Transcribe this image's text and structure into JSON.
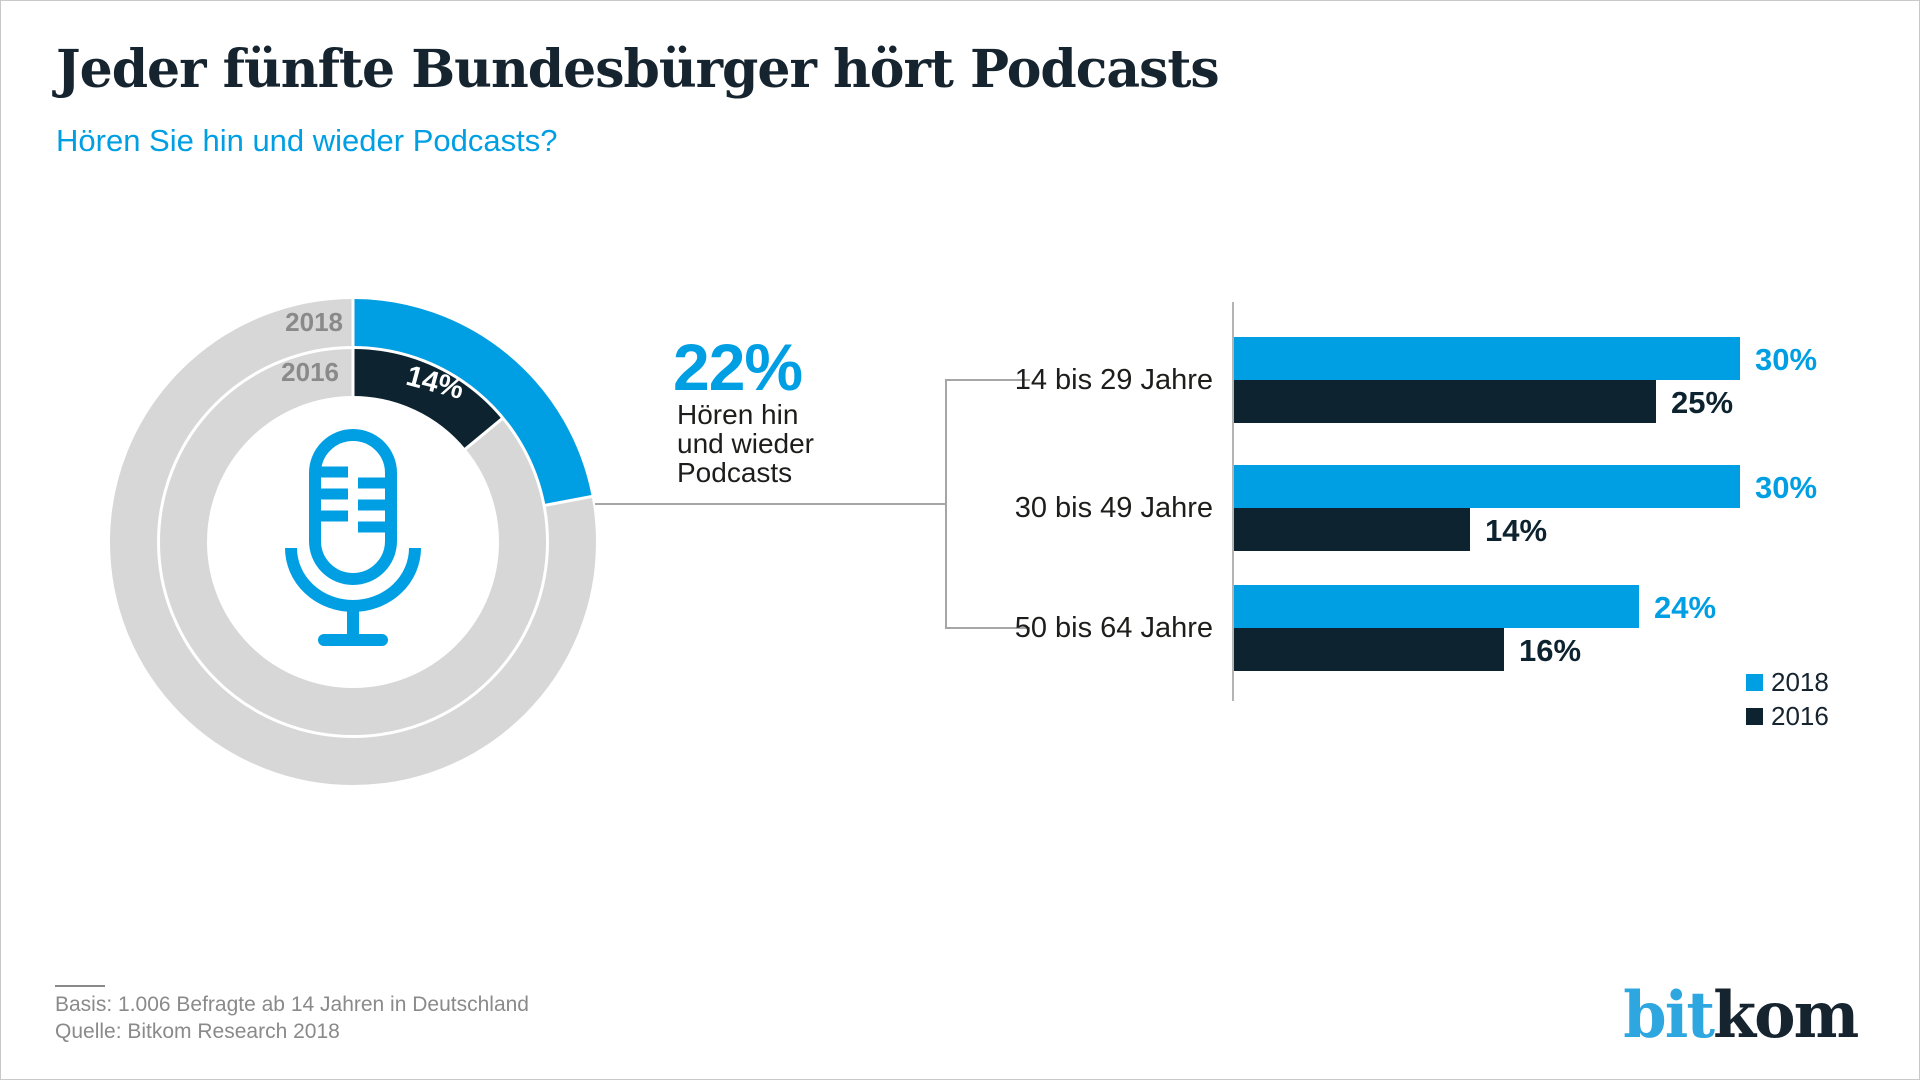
{
  "header": {
    "title": "Jeder fünfte Bundesbürger hört Podcasts",
    "subtitle": "Hören Sie hin und wieder Podcasts?"
  },
  "colors": {
    "blue": "#009FE3",
    "dark": "#0D2430",
    "ring_gray": "#D7D7D7",
    "gray_label": "#8A8A8A",
    "title_dark": "#16242F",
    "logo_blue": "#2EA7E0"
  },
  "chart_data": [
    {
      "id": "donut",
      "type": "pie",
      "subtype": "concentric-donut",
      "title": "Hören Sie hin und wieder Podcasts?",
      "rings": [
        {
          "name": "2018",
          "position": "outer",
          "value": 22,
          "rest": 78,
          "color": "#009FE3",
          "value_label": ""
        },
        {
          "name": "2016",
          "position": "inner",
          "value": 14,
          "rest": 86,
          "color": "#0D2430",
          "value_label": "14%"
        }
      ],
      "callout": {
        "value_label": "22%",
        "description_lines": [
          "Hören hin",
          "und wieder",
          "Podcasts"
        ]
      },
      "center_icon": "microphone-icon"
    },
    {
      "id": "age-groups",
      "type": "bar",
      "orientation": "horizontal",
      "categories": [
        "14 bis 29 Jahre",
        "30 bis 49 Jahre",
        "50 bis 64 Jahre"
      ],
      "series": [
        {
          "name": "2018",
          "color": "#009FE3",
          "values": [
            30,
            30,
            24
          ]
        },
        {
          "name": "2016",
          "color": "#0D2430",
          "values": [
            25,
            14,
            16
          ]
        }
      ],
      "value_suffix": "%",
      "xlim": [
        0,
        33
      ],
      "grid": false,
      "legend_position": "bottom-right",
      "legend": [
        "2018",
        "2016"
      ]
    }
  ],
  "footer": {
    "basis": "Basis: 1.006 Befragte ab 14 Jahren in Deutschland",
    "quelle": "Quelle: Bitkom Research 2018"
  },
  "logo": {
    "part1": "bit",
    "part2": "kom"
  }
}
